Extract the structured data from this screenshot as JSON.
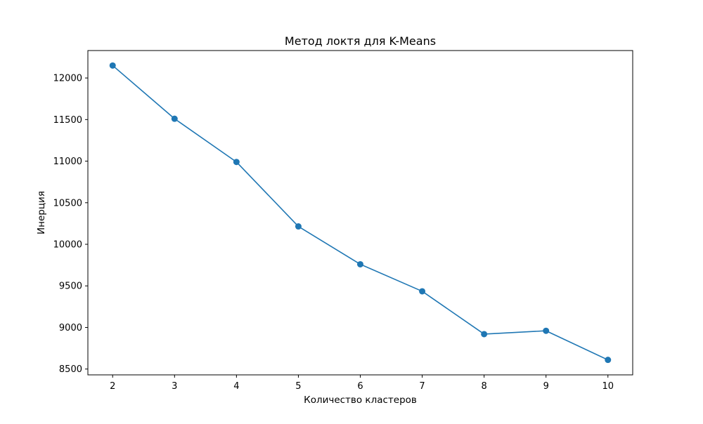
{
  "chart_data": {
    "type": "line",
    "title": "Метод локтя для K-Means",
    "xlabel": "Количество кластеров",
    "ylabel": "Инерция",
    "x": [
      2,
      3,
      4,
      5,
      6,
      7,
      8,
      9,
      10
    ],
    "series": [
      {
        "values": [
          12150,
          11510,
          10990,
          10215,
          9760,
          9435,
          8920,
          8960,
          8610
        ],
        "color": "#1f77b4",
        "marker": "circle"
      }
    ],
    "xticks": [
      "2",
      "3",
      "4",
      "5",
      "6",
      "7",
      "8",
      "9",
      "10"
    ],
    "yticks": [
      "8500",
      "9000",
      "9500",
      "10000",
      "10500",
      "11000",
      "11500",
      "12000"
    ],
    "xlim": [
      1.6,
      10.4
    ],
    "ylim": [
      8430,
      12330
    ],
    "grid": false,
    "legend": "none"
  }
}
